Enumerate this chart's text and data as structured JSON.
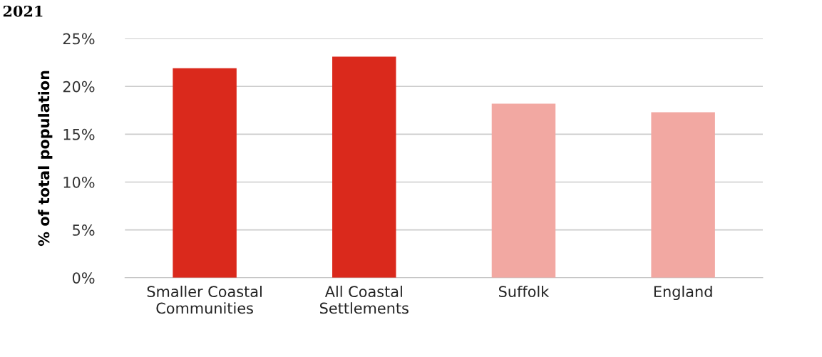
{
  "chart_data": {
    "type": "bar",
    "title": "2021",
    "ylabel": "% of total population",
    "categories": [
      "Smaller Coastal\nCommunities",
      "All Coastal\nSettlements",
      "Suffolk",
      "England"
    ],
    "values": [
      21.9,
      23.1,
      18.2,
      17.3
    ],
    "colors": [
      "#da291c",
      "#da291c",
      "#f2a8a2",
      "#f2a8a2"
    ],
    "ylim": [
      0,
      25
    ],
    "yticks": [
      {
        "value": 0,
        "label": "0%"
      },
      {
        "value": 5,
        "label": "5%"
      },
      {
        "value": 10,
        "label": "10%"
      },
      {
        "value": 15,
        "label": "15%"
      },
      {
        "value": 20,
        "label": "20%"
      },
      {
        "value": 25,
        "label": "25%"
      }
    ],
    "grid": "y"
  }
}
